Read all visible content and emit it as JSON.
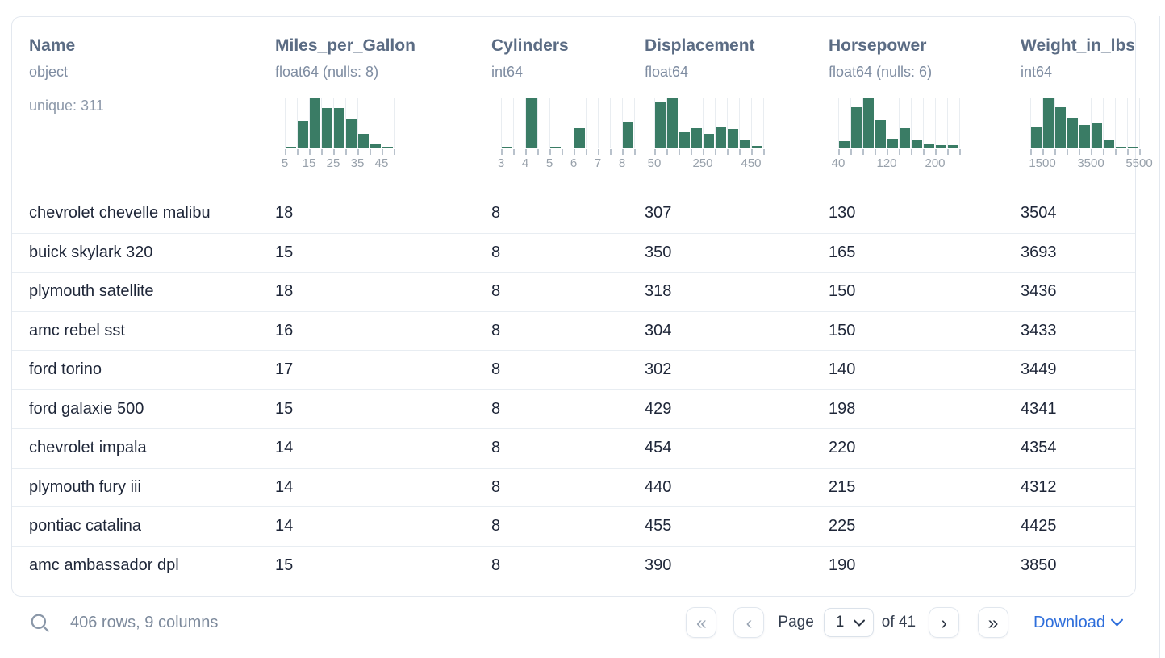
{
  "table": {
    "columns": [
      {
        "name": "Name",
        "type": "object",
        "extra": "unique: 311",
        "hist": null
      },
      {
        "name": "Miles_per_Gallon",
        "type": "float64 (nulls: 8)",
        "hist": {
          "bins": [
            3,
            55,
            100,
            80,
            80,
            60,
            29,
            10,
            3
          ],
          "labels": [
            {
              "text": "5",
              "tick": 0
            },
            {
              "text": "15",
              "tick": 2
            },
            {
              "text": "25",
              "tick": 4
            },
            {
              "text": "35",
              "tick": 6
            },
            {
              "text": "45",
              "tick": 8
            }
          ]
        }
      },
      {
        "name": "Cylinders",
        "type": "int64",
        "hist": {
          "bins": [
            4,
            0,
            100,
            0,
            3,
            0,
            41,
            0,
            0,
            0,
            53
          ],
          "labels": [
            {
              "text": "3",
              "tick": 0
            },
            {
              "text": "4",
              "tick": 2
            },
            {
              "text": "5",
              "tick": 4
            },
            {
              "text": "6",
              "tick": 6
            },
            {
              "text": "7",
              "tick": 8
            },
            {
              "text": "8",
              "tick": 10
            }
          ]
        }
      },
      {
        "name": "Displacement",
        "type": "float64",
        "hist": {
          "bins": [
            93,
            100,
            33,
            41,
            29,
            44,
            38,
            18,
            5
          ],
          "labels": [
            {
              "text": "50",
              "tick": 0
            },
            {
              "text": "250",
              "tick": 4
            },
            {
              "text": "450",
              "tick": 8
            }
          ]
        }
      },
      {
        "name": "Horsepower",
        "type": "float64 (nulls: 6)",
        "hist": {
          "bins": [
            15,
            83,
            100,
            56,
            19,
            41,
            18,
            10,
            6,
            7
          ],
          "labels": [
            {
              "text": "40",
              "tick": 0
            },
            {
              "text": "120",
              "tick": 4
            },
            {
              "text": "200",
              "tick": 8
            }
          ]
        }
      },
      {
        "name": "Weight_in_lbs",
        "type": "int64",
        "hist": {
          "bins": [
            44,
            100,
            83,
            62,
            46,
            50,
            16,
            3,
            1
          ],
          "labels": [
            {
              "text": "1500",
              "tick": 1
            },
            {
              "text": "3500",
              "tick": 5
            },
            {
              "text": "5500",
              "tick": 9
            }
          ]
        }
      }
    ],
    "rows": [
      [
        "chevrolet chevelle malibu",
        "18",
        "8",
        "307",
        "130",
        "3504"
      ],
      [
        "buick skylark 320",
        "15",
        "8",
        "350",
        "165",
        "3693"
      ],
      [
        "plymouth satellite",
        "18",
        "8",
        "318",
        "150",
        "3436"
      ],
      [
        "amc rebel sst",
        "16",
        "8",
        "304",
        "150",
        "3433"
      ],
      [
        "ford torino",
        "17",
        "8",
        "302",
        "140",
        "3449"
      ],
      [
        "ford galaxie 500",
        "15",
        "8",
        "429",
        "198",
        "4341"
      ],
      [
        "chevrolet impala",
        "14",
        "8",
        "454",
        "220",
        "4354"
      ],
      [
        "plymouth fury iii",
        "14",
        "8",
        "440",
        "215",
        "4312"
      ],
      [
        "pontiac catalina",
        "14",
        "8",
        "455",
        "225",
        "4425"
      ],
      [
        "amc ambassador dpl",
        "15",
        "8",
        "390",
        "190",
        "3850"
      ]
    ]
  },
  "footer": {
    "count_text": "406 rows, 9 columns",
    "page_label": "Page",
    "page_value": "1",
    "of_label": "of 41",
    "download_label": "Download",
    "first_icon": "«",
    "prev_icon": "‹",
    "next_icon": "›",
    "last_icon": "»"
  },
  "colors": {
    "histogram_bar": "#3a7c65",
    "accent_blue": "#2e6edb"
  },
  "chart_data": [
    {
      "type": "bar",
      "column": "Miles_per_Gallon",
      "bin_start": 5,
      "bin_width": 5,
      "x_ticks": [
        5,
        15,
        25,
        35,
        45
      ],
      "values_percent_of_max": [
        3,
        55,
        100,
        80,
        80,
        60,
        29,
        10,
        3
      ]
    },
    {
      "type": "bar",
      "column": "Cylinders",
      "bin_start": 3,
      "bin_width": 0.5,
      "x_ticks": [
        3,
        4,
        5,
        6,
        7,
        8
      ],
      "values_percent_of_max": [
        4,
        0,
        100,
        0,
        3,
        0,
        41,
        0,
        0,
        0,
        53
      ]
    },
    {
      "type": "bar",
      "column": "Displacement",
      "bin_start": 50,
      "bin_width": 50,
      "x_ticks": [
        50,
        250,
        450
      ],
      "values_percent_of_max": [
        93,
        100,
        33,
        41,
        29,
        44,
        38,
        18,
        5
      ]
    },
    {
      "type": "bar",
      "column": "Horsepower",
      "bin_start": 40,
      "bin_width": 20,
      "x_ticks": [
        40,
        120,
        200
      ],
      "values_percent_of_max": [
        15,
        83,
        100,
        56,
        19,
        41,
        18,
        10,
        6,
        7
      ]
    },
    {
      "type": "bar",
      "column": "Weight_in_lbs",
      "bin_start": 1000,
      "bin_width": 500,
      "x_ticks": [
        1500,
        3500,
        5500
      ],
      "values_percent_of_max": [
        44,
        100,
        83,
        62,
        46,
        50,
        16,
        3,
        1
      ]
    }
  ]
}
